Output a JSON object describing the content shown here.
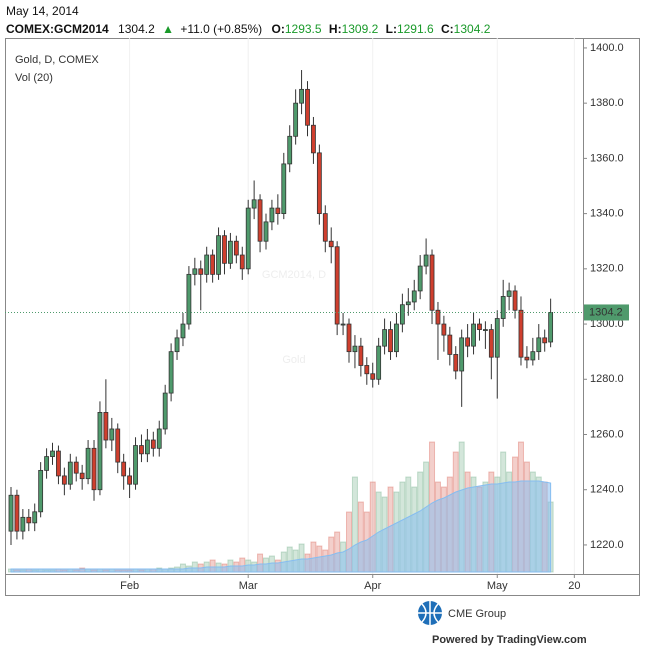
{
  "header": {
    "date": "May 14, 2014",
    "symbol": "COMEX:GCM2014",
    "change": "+11.0 (+0.85%)",
    "open_label": "O:",
    "high_label": "H:",
    "low_label": "L:",
    "close_label": "C:"
  },
  "footer": {
    "brand": "CME Group",
    "powered": "Powered by TradingView.com"
  },
  "chart_data": {
    "type": "candlestick",
    "title": "Gold, D, COMEX",
    "subtitle": "Vol (20)",
    "watermark": [
      "GCM2014, D",
      "Gold"
    ],
    "up_color": "#4f9a6c",
    "down_color": "#cf3f2e",
    "volume_ma_color": "#86bdf0",
    "categories": [
      null,
      null,
      null,
      null,
      null,
      null,
      null,
      null,
      null,
      null,
      null,
      null,
      null,
      null,
      null,
      null,
      null,
      null,
      null,
      null,
      "Feb",
      null,
      null,
      null,
      null,
      null,
      null,
      null,
      null,
      null,
      null,
      null,
      null,
      null,
      null,
      null,
      null,
      null,
      null,
      null,
      "Mar",
      null,
      null,
      null,
      null,
      null,
      null,
      null,
      null,
      null,
      null,
      null,
      null,
      null,
      null,
      null,
      null,
      null,
      null,
      null,
      null,
      "Apr",
      null,
      null,
      null,
      null,
      null,
      null,
      null,
      null,
      null,
      null,
      null,
      null,
      null,
      null,
      null,
      null,
      null,
      null,
      null,
      null,
      "May",
      null,
      null,
      null,
      null,
      null,
      null,
      null,
      null,
      null,
      null,
      null,
      null,
      "20"
    ],
    "open": [
      1225,
      1238,
      1225,
      1230,
      1228,
      1232,
      1247,
      1252,
      1254,
      1245,
      1242,
      1250,
      1246,
      1244,
      1255,
      1240,
      1268,
      1258,
      1262,
      1250,
      1245,
      1242,
      1256,
      1253,
      1258,
      1255,
      1262,
      1275,
      1290,
      1295,
      1300,
      1318,
      1320,
      1318,
      1325,
      1318,
      1332,
      1322,
      1330,
      1325,
      1320,
      1342,
      1345,
      1330,
      1337,
      1342,
      1340,
      1358,
      1368,
      1380,
      1385,
      1372,
      1362,
      1340,
      1330,
      1328,
      1300,
      1300,
      1290,
      1292,
      1285,
      1282,
      1280,
      1292,
      1298,
      1290,
      1300,
      1307,
      1308,
      1312,
      1321,
      1325,
      1305,
      1300,
      1296,
      1289,
      1283,
      1295,
      1292,
      1300,
      1298,
      1298,
      1288,
      1302,
      1310,
      1312,
      1305,
      1288,
      1287,
      1290,
      1295,
      1293.5,
      null,
      null,
      null,
      null
    ],
    "high": [
      1241,
      1240,
      1233,
      1233,
      1235,
      1250,
      1255,
      1257,
      1256,
      1248,
      1253,
      1252,
      1249,
      1258,
      1258,
      1272,
      1280,
      1266,
      1264,
      1253,
      1248,
      1259,
      1260,
      1262,
      1261,
      1265,
      1278,
      1293,
      1298,
      1304,
      1321,
      1324,
      1323,
      1328,
      1327,
      1335,
      1334,
      1333,
      1332,
      1328,
      1345,
      1352,
      1347,
      1340,
      1345,
      1347,
      1362,
      1372,
      1385,
      1392,
      1388,
      1375,
      1365,
      1343,
      1335,
      1330,
      1304,
      1302,
      1296,
      1295,
      1288,
      1286,
      1295,
      1302,
      1301,
      1304,
      1311,
      1313,
      1316,
      1325,
      1331,
      1327,
      1308,
      1303,
      1299,
      1292,
      1298,
      1300,
      1304,
      1302,
      1301,
      1300,
      1305,
      1316,
      1315,
      1314,
      1310,
      1292,
      1295,
      1300,
      1298,
      1309.2,
      null,
      null,
      null,
      null
    ],
    "low": [
      1220,
      1222,
      1222,
      1225,
      1225,
      1230,
      1244,
      1249,
      1242,
      1238,
      1240,
      1243,
      1240,
      1242,
      1236,
      1238,
      1255,
      1254,
      1246,
      1240,
      1237,
      1240,
      1250,
      1250,
      1252,
      1252,
      1260,
      1272,
      1287,
      1292,
      1298,
      1314,
      1305,
      1315,
      1315,
      1316,
      1318,
      1320,
      1322,
      1316,
      1318,
      1338,
      1326,
      1327,
      1334,
      1336,
      1338,
      1355,
      1365,
      1376,
      1368,
      1358,
      1336,
      1326,
      1322,
      1296,
      1296,
      1286,
      1284,
      1281,
      1278,
      1277,
      1278,
      1289,
      1287,
      1288,
      1297,
      1303,
      1305,
      1309,
      1318,
      1300,
      1287,
      1290,
      1285,
      1280,
      1270,
      1288,
      1289,
      1294,
      1291,
      1280,
      1273,
      1299,
      1305,
      1302,
      1285,
      1284,
      1285,
      1287,
      1290,
      1291.6,
      null,
      null,
      null,
      null
    ],
    "close": [
      1238,
      1225,
      1230,
      1228,
      1232,
      1247,
      1252,
      1254,
      1245,
      1242,
      1250,
      1246,
      1244,
      1255,
      1240,
      1268,
      1258,
      1262,
      1250,
      1245,
      1242,
      1256,
      1253,
      1258,
      1255,
      1262,
      1275,
      1290,
      1295,
      1300,
      1318,
      1320,
      1318,
      1325,
      1318,
      1332,
      1322,
      1330,
      1325,
      1320,
      1342,
      1345,
      1330,
      1337,
      1342,
      1340,
      1358,
      1368,
      1380,
      1385,
      1372,
      1362,
      1340,
      1330,
      1328,
      1300,
      1300,
      1290,
      1292,
      1285,
      1282,
      1280,
      1292,
      1298,
      1290,
      1300,
      1307,
      1308,
      1312,
      1321,
      1325,
      1305,
      1300,
      1296,
      1289,
      1283,
      1295,
      1292,
      1300,
      1298,
      1298,
      1288,
      1302,
      1310,
      1312,
      1305,
      1288,
      1287,
      1290,
      1295,
      1293.2,
      1304.2,
      null,
      null,
      null,
      null
    ],
    "volume": [
      3,
      2,
      2,
      3,
      2,
      3,
      2,
      2,
      3,
      2,
      3,
      2,
      4,
      3,
      2,
      3,
      2,
      3,
      2,
      2,
      2,
      3,
      2,
      3,
      3,
      4,
      3,
      4,
      5,
      8,
      6,
      10,
      8,
      10,
      12,
      9,
      8,
      12,
      10,
      14,
      12,
      10,
      18,
      14,
      16,
      12,
      20,
      25,
      22,
      28,
      18,
      30,
      26,
      22,
      35,
      40,
      30,
      60,
      95,
      70,
      60,
      90,
      80,
      75,
      85,
      80,
      90,
      95,
      85,
      100,
      110,
      130,
      90,
      85,
      95,
      120,
      130,
      100,
      95,
      85,
      90,
      100,
      95,
      120,
      100,
      115,
      130,
      110,
      100,
      95,
      90,
      70,
      null,
      null,
      null,
      null
    ],
    "volume_ma": [
      3,
      3,
      3,
      3,
      3,
      3,
      3,
      3,
      3,
      3,
      3,
      3,
      3,
      3,
      3,
      3,
      3,
      3,
      3,
      3,
      3,
      3,
      3,
      3,
      3,
      3,
      3,
      3,
      3,
      3,
      4,
      4,
      4,
      5,
      5,
      5,
      5,
      6,
      6,
      6,
      7,
      7,
      8,
      8,
      9,
      9,
      10,
      11,
      12,
      13,
      13,
      14,
      15,
      16,
      17,
      19,
      20,
      23,
      27,
      30,
      32,
      36,
      40,
      43,
      46,
      49,
      52,
      55,
      58,
      61,
      65,
      69,
      72,
      74,
      77,
      80,
      82,
      84,
      85,
      86,
      87,
      88,
      88,
      89,
      90,
      90,
      91,
      91,
      91,
      91,
      90,
      89,
      null,
      null,
      null,
      null
    ],
    "ylim": [
      1210.2,
      1403.6
    ],
    "yticks": [
      {
        "value": 1220,
        "label": "1220.0"
      },
      {
        "value": 1240,
        "label": "1240.0"
      },
      {
        "value": 1260,
        "label": "1260.0"
      },
      {
        "value": 1280,
        "label": "1280.0"
      },
      {
        "value": 1300,
        "label": "1300.0"
      },
      {
        "value": 1320,
        "label": "1320.0"
      },
      {
        "value": 1340,
        "label": "1340.0"
      },
      {
        "value": 1360,
        "label": "1360.0"
      },
      {
        "value": 1380,
        "label": "1380.0"
      },
      {
        "value": 1400,
        "label": "1400.0"
      }
    ],
    "grid": false
  }
}
